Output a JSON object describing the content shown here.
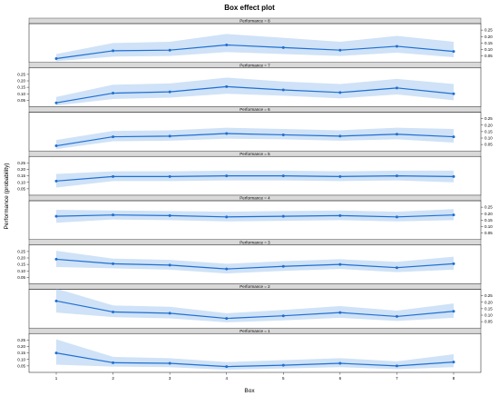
{
  "chart_data": {
    "type": "line",
    "title": "Box effect plot",
    "xlabel": "Box",
    "ylabel": "Performance (probability)",
    "x": [
      1,
      2,
      3,
      4,
      5,
      6,
      7,
      8
    ],
    "x_tick_labels": [
      "1",
      "2",
      "3",
      "4",
      "5",
      "6",
      "7",
      "8"
    ],
    "y_ticks": [
      0.05,
      0.1,
      0.15,
      0.2,
      0.25
    ],
    "y_tick_labels": [
      "0.05",
      "0.10",
      "0.15",
      "0.20",
      "0.25"
    ],
    "ylim": [
      0.0,
      0.3
    ],
    "grid": false,
    "band_color": "#cfe2f7",
    "line_color": "#1f6fd1",
    "strip_color": "#d9d9d9",
    "panels": [
      {
        "label": "Performance = 8",
        "values": [
          0.03,
          0.09,
          0.095,
          0.135,
          0.115,
          0.095,
          0.125,
          0.085
        ],
        "lower": [
          0.01,
          0.045,
          0.05,
          0.08,
          0.065,
          0.05,
          0.075,
          0.04
        ],
        "upper": [
          0.065,
          0.15,
          0.16,
          0.22,
          0.19,
          0.16,
          0.205,
          0.16
        ]
      },
      {
        "label": "Performance = 7",
        "values": [
          0.03,
          0.105,
          0.115,
          0.155,
          0.13,
          0.11,
          0.145,
          0.1
        ],
        "lower": [
          0.01,
          0.06,
          0.07,
          0.1,
          0.085,
          0.065,
          0.095,
          0.05
        ],
        "upper": [
          0.075,
          0.17,
          0.18,
          0.225,
          0.195,
          0.175,
          0.215,
          0.175
        ]
      },
      {
        "label": "Performance = 6",
        "values": [
          0.04,
          0.11,
          0.115,
          0.135,
          0.125,
          0.115,
          0.13,
          0.11
        ],
        "lower": [
          0.015,
          0.075,
          0.08,
          0.095,
          0.09,
          0.08,
          0.09,
          0.065
        ],
        "upper": [
          0.085,
          0.155,
          0.16,
          0.18,
          0.17,
          0.16,
          0.18,
          0.17
        ]
      },
      {
        "label": "Performance = 5",
        "values": [
          0.11,
          0.145,
          0.145,
          0.15,
          0.15,
          0.145,
          0.15,
          0.145
        ],
        "lower": [
          0.06,
          0.11,
          0.11,
          0.115,
          0.115,
          0.11,
          0.115,
          0.1
        ],
        "upper": [
          0.165,
          0.185,
          0.185,
          0.19,
          0.19,
          0.185,
          0.19,
          0.19
        ]
      },
      {
        "label": "Performance = 4",
        "values": [
          0.18,
          0.19,
          0.185,
          0.175,
          0.18,
          0.185,
          0.175,
          0.19
        ],
        "lower": [
          0.13,
          0.155,
          0.15,
          0.14,
          0.145,
          0.15,
          0.14,
          0.15
        ],
        "upper": [
          0.23,
          0.225,
          0.22,
          0.215,
          0.22,
          0.225,
          0.215,
          0.235
        ]
      },
      {
        "label": "Performance = 3",
        "values": [
          0.19,
          0.155,
          0.145,
          0.115,
          0.135,
          0.15,
          0.125,
          0.155
        ],
        "lower": [
          0.13,
          0.12,
          0.11,
          0.08,
          0.1,
          0.115,
          0.09,
          0.11
        ],
        "upper": [
          0.255,
          0.195,
          0.185,
          0.155,
          0.175,
          0.19,
          0.17,
          0.21
        ]
      },
      {
        "label": "Performance = 2",
        "values": [
          0.21,
          0.125,
          0.115,
          0.075,
          0.095,
          0.12,
          0.09,
          0.13
        ],
        "lower": [
          0.12,
          0.085,
          0.075,
          0.045,
          0.06,
          0.08,
          0.055,
          0.08
        ],
        "upper": [
          0.305,
          0.175,
          0.165,
          0.115,
          0.14,
          0.17,
          0.135,
          0.19
        ]
      },
      {
        "label": "Performance = 1",
        "values": [
          0.15,
          0.075,
          0.07,
          0.045,
          0.055,
          0.07,
          0.05,
          0.08
        ],
        "lower": [
          0.06,
          0.045,
          0.04,
          0.02,
          0.03,
          0.04,
          0.025,
          0.04
        ],
        "upper": [
          0.255,
          0.12,
          0.11,
          0.08,
          0.095,
          0.11,
          0.085,
          0.14
        ]
      }
    ]
  }
}
